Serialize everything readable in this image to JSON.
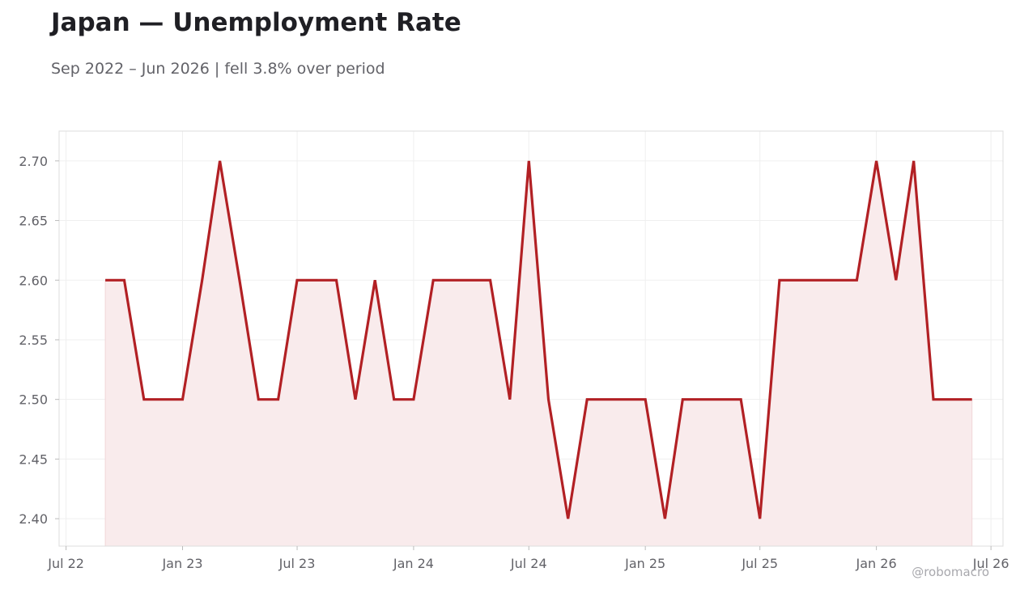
{
  "title": "Japan — Unemployment Rate",
  "subtitle": "Sep 2022 – Jun 2026 | fell 3.8% over period",
  "watermark": "@robomacro",
  "colors": {
    "line": "#b22024",
    "fill": "#f9ebec",
    "grid": "#efefef",
    "frame": "#dddddd"
  },
  "chart_data": {
    "type": "area",
    "title": "Japan — Unemployment Rate",
    "xlabel": "",
    "ylabel": "",
    "grid": true,
    "ylim": [
      2.377,
      2.725
    ],
    "xlim": [
      "2022-06-20",
      "2026-07-20"
    ],
    "yticks": [
      2.4,
      2.45,
      2.5,
      2.55,
      2.6,
      2.65,
      2.7
    ],
    "ytick_labels": [
      "2.40",
      "2.45",
      "2.50",
      "2.55",
      "2.60",
      "2.65",
      "2.70"
    ],
    "xticks": [
      "2022-07-01",
      "2023-01-01",
      "2023-07-01",
      "2024-01-01",
      "2024-07-01",
      "2025-01-01",
      "2025-07-01",
      "2026-01-01",
      "2026-07-01"
    ],
    "xtick_labels": [
      "Jul 22",
      "Jan 23",
      "Jul 23",
      "Jan 24",
      "Jul 24",
      "Jan 25",
      "Jul 25",
      "Jan 26",
      "Jul 26"
    ],
    "x": [
      "2022-09-01",
      "2022-10-01",
      "2022-11-01",
      "2022-12-01",
      "2023-01-01",
      "2023-02-01",
      "2023-03-01",
      "2023-04-01",
      "2023-05-01",
      "2023-06-01",
      "2023-07-01",
      "2023-08-01",
      "2023-09-01",
      "2023-10-01",
      "2023-11-01",
      "2023-12-01",
      "2024-01-01",
      "2024-02-01",
      "2024-03-01",
      "2024-04-01",
      "2024-05-01",
      "2024-06-01",
      "2024-07-01",
      "2024-08-01",
      "2024-09-01",
      "2024-10-01",
      "2024-11-01",
      "2024-12-01",
      "2025-01-01",
      "2025-02-01",
      "2025-03-01",
      "2025-04-01",
      "2025-05-01",
      "2025-06-01",
      "2025-07-01",
      "2025-08-01",
      "2025-09-01",
      "2025-10-01",
      "2025-11-01",
      "2025-12-01",
      "2026-01-01",
      "2026-02-01",
      "2026-03-01",
      "2026-04-01",
      "2026-05-01",
      "2026-06-01"
    ],
    "series": [
      {
        "values": [
          2.6,
          2.6,
          2.5,
          2.5,
          2.5,
          2.6,
          2.7,
          2.6,
          2.5,
          2.5,
          2.6,
          2.6,
          2.6,
          2.5,
          2.6,
          2.5,
          2.5,
          2.6,
          2.6,
          2.6,
          2.6,
          2.5,
          2.7,
          2.5,
          2.4,
          2.5,
          2.5,
          2.5,
          2.5,
          2.4,
          2.5,
          2.5,
          2.5,
          2.5,
          2.4,
          2.6,
          2.6,
          2.6,
          2.6,
          2.6,
          2.7,
          2.6,
          2.7,
          2.5,
          2.5,
          2.5
        ]
      }
    ]
  }
}
